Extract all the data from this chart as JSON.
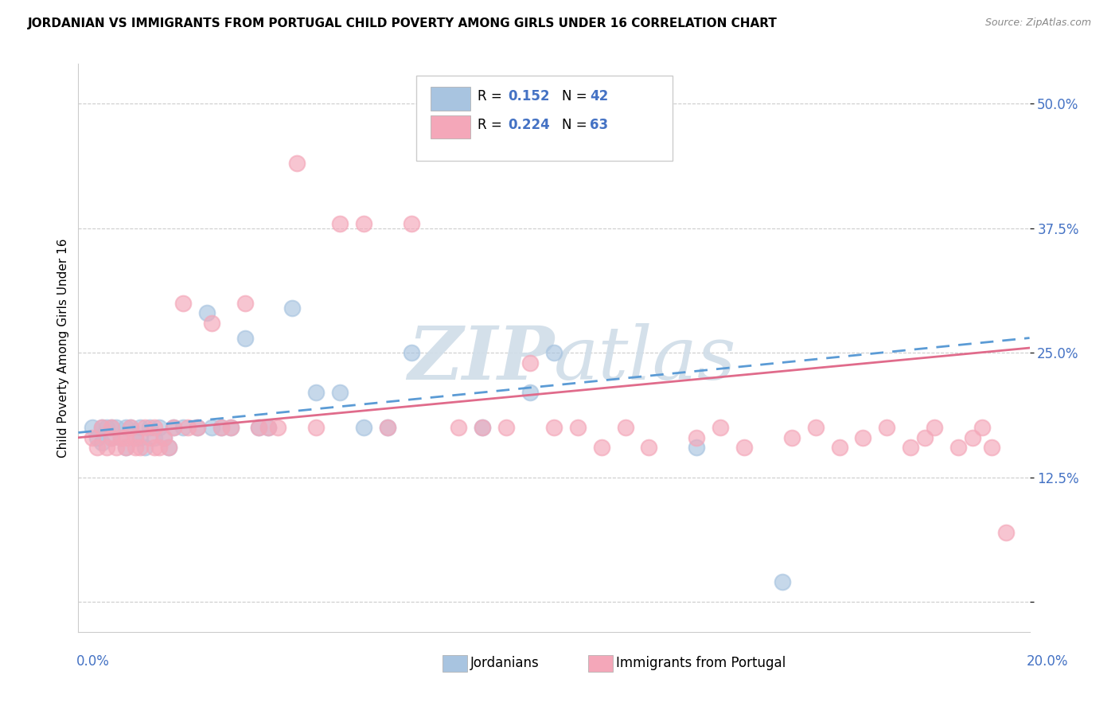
{
  "title": "JORDANIAN VS IMMIGRANTS FROM PORTUGAL CHILD POVERTY AMONG GIRLS UNDER 16 CORRELATION CHART",
  "source": "Source: ZipAtlas.com",
  "ylabel": "Child Poverty Among Girls Under 16",
  "ytick_vals": [
    0.0,
    0.125,
    0.25,
    0.375,
    0.5
  ],
  "ytick_labels": [
    "",
    "12.5%",
    "25.0%",
    "37.5%",
    "50.0%"
  ],
  "xrange": [
    0.0,
    0.2
  ],
  "yrange": [
    -0.03,
    0.54
  ],
  "color_jordanian": "#a8c4e0",
  "color_portugal": "#f4a7b9",
  "color_line_jordanian": "#5b9bd5",
  "color_line_portugal": "#e06b8b",
  "color_text_blue": "#4472c4",
  "watermark_color": "#d0dde8",
  "jordanian_x": [
    0.003,
    0.004,
    0.005,
    0.005,
    0.006,
    0.007,
    0.007,
    0.008,
    0.009,
    0.01,
    0.01,
    0.011,
    0.012,
    0.013,
    0.013,
    0.014,
    0.015,
    0.016,
    0.017,
    0.018,
    0.019,
    0.02,
    0.022,
    0.025,
    0.027,
    0.028,
    0.03,
    0.032,
    0.035,
    0.038,
    0.04,
    0.045,
    0.05,
    0.055,
    0.06,
    0.065,
    0.07,
    0.085,
    0.095,
    0.1,
    0.13,
    0.148
  ],
  "jordanian_y": [
    0.175,
    0.165,
    0.16,
    0.175,
    0.175,
    0.165,
    0.175,
    0.175,
    0.165,
    0.175,
    0.155,
    0.175,
    0.165,
    0.175,
    0.165,
    0.155,
    0.175,
    0.165,
    0.175,
    0.165,
    0.155,
    0.175,
    0.175,
    0.175,
    0.29,
    0.175,
    0.175,
    0.175,
    0.265,
    0.175,
    0.175,
    0.295,
    0.21,
    0.21,
    0.175,
    0.175,
    0.25,
    0.175,
    0.21,
    0.25,
    0.155,
    0.02
  ],
  "portugal_x": [
    0.003,
    0.004,
    0.005,
    0.006,
    0.007,
    0.007,
    0.008,
    0.009,
    0.01,
    0.01,
    0.011,
    0.012,
    0.012,
    0.013,
    0.014,
    0.015,
    0.016,
    0.016,
    0.017,
    0.018,
    0.019,
    0.02,
    0.022,
    0.023,
    0.025,
    0.028,
    0.03,
    0.032,
    0.035,
    0.038,
    0.04,
    0.042,
    0.046,
    0.05,
    0.055,
    0.06,
    0.065,
    0.07,
    0.08,
    0.085,
    0.09,
    0.095,
    0.1,
    0.105,
    0.11,
    0.115,
    0.12,
    0.13,
    0.135,
    0.14,
    0.15,
    0.155,
    0.16,
    0.165,
    0.17,
    0.175,
    0.178,
    0.18,
    0.185,
    0.188,
    0.19,
    0.192,
    0.195
  ],
  "portugal_y": [
    0.165,
    0.155,
    0.175,
    0.155,
    0.165,
    0.175,
    0.155,
    0.165,
    0.165,
    0.155,
    0.175,
    0.155,
    0.165,
    0.155,
    0.175,
    0.165,
    0.155,
    0.175,
    0.155,
    0.165,
    0.155,
    0.175,
    0.3,
    0.175,
    0.175,
    0.28,
    0.175,
    0.175,
    0.3,
    0.175,
    0.175,
    0.175,
    0.44,
    0.175,
    0.38,
    0.38,
    0.175,
    0.38,
    0.175,
    0.175,
    0.175,
    0.24,
    0.175,
    0.175,
    0.155,
    0.175,
    0.155,
    0.165,
    0.175,
    0.155,
    0.165,
    0.175,
    0.155,
    0.165,
    0.175,
    0.155,
    0.165,
    0.175,
    0.155,
    0.165,
    0.175,
    0.155,
    0.07
  ]
}
